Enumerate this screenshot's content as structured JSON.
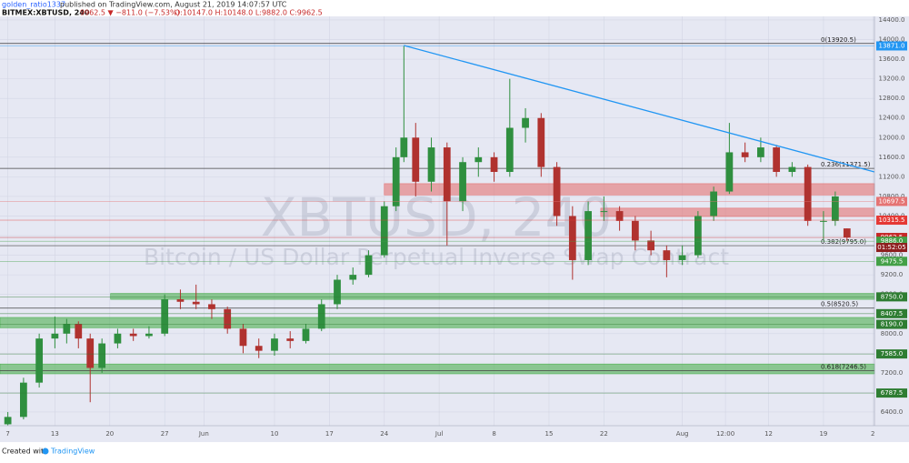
{
  "chart_data": {
    "type": "candlestick",
    "publisher": "golden_ratio1337",
    "published": "published on TradingView.com, August 21, 2019 14:07:57 UTC",
    "symbol": "BITMEX:XBTUSD, 240",
    "change": "9962.5 ▼ −811.0 (−7.53%)",
    "ohlc_text": "O:10147.0 H:10148.0 L:9882.0 C:9962.5",
    "watermark": "XBTUSD, 240",
    "watermark_subtitle": "Bitcoin / US Dollar Perpetual Inverse Swap Contract",
    "footer": "Created with",
    "footer_brand": "TradingView",
    "up_color": "#2f8f3f",
    "down_color": "#b0322f",
    "xlim": [
      6,
      117.5
    ],
    "ylim": [
      6121,
      14474
    ],
    "xticks": [
      {
        "value": 7,
        "label": "7"
      },
      {
        "value": 13,
        "label": "13"
      },
      {
        "value": 20,
        "label": "20"
      },
      {
        "value": 27,
        "label": "27"
      },
      {
        "value": 32,
        "label": "Jun"
      },
      {
        "value": 41,
        "label": "10"
      },
      {
        "value": 48,
        "label": "17"
      },
      {
        "value": 55,
        "label": "24"
      },
      {
        "value": 62,
        "label": "Jul"
      },
      {
        "value": 69,
        "label": "8"
      },
      {
        "value": 76,
        "label": "15"
      },
      {
        "value": 83,
        "label": "22"
      },
      {
        "value": 93,
        "label": "Aug"
      },
      {
        "value": 98.5,
        "label": "12:00"
      },
      {
        "value": 104,
        "label": "12"
      },
      {
        "value": 111,
        "label": "19"
      },
      {
        "value": 117.3,
        "label": "2"
      }
    ],
    "yticks": [
      {
        "value": 6400,
        "label": "6400.0"
      },
      {
        "value": 6800,
        "label": "6800.0"
      },
      {
        "value": 7200,
        "label": "7200.0"
      },
      {
        "value": 7600,
        "label": "7600.0"
      },
      {
        "value": 8000,
        "label": "8000.0"
      },
      {
        "value": 8400,
        "label": "8400.0"
      },
      {
        "value": 8800,
        "label": "8800.0"
      },
      {
        "value": 9200,
        "label": "9200.0"
      },
      {
        "value": 9600,
        "label": "9600.0"
      },
      {
        "value": 10000,
        "label": "10000.0"
      },
      {
        "value": 10400,
        "label": "10400.0"
      },
      {
        "value": 10800,
        "label": "10800.0"
      },
      {
        "value": 11200,
        "label": "11200.0"
      },
      {
        "value": 11600,
        "label": "11600.0"
      },
      {
        "value": 12000,
        "label": "12000.0"
      },
      {
        "value": 12400,
        "label": "12400.0"
      },
      {
        "value": 12800,
        "label": "12800.0"
      },
      {
        "value": 13200,
        "label": "13200.0"
      },
      {
        "value": 13600,
        "label": "13600.0"
      },
      {
        "value": 14000,
        "label": "14000.0"
      },
      {
        "value": 14400,
        "label": "14400.0"
      }
    ],
    "grid": true,
    "x": [
      7,
      9,
      11,
      13,
      14.5,
      16,
      17.5,
      19,
      21,
      23,
      25,
      27,
      29,
      31,
      33,
      35,
      37,
      39,
      41,
      43,
      45,
      47,
      49,
      51,
      53,
      55,
      56.5,
      57.5,
      59,
      61,
      63,
      65,
      67,
      69,
      71,
      73,
      75,
      77,
      79,
      81,
      83,
      85,
      87,
      89,
      91,
      93,
      95,
      97,
      99,
      101,
      103,
      105,
      107,
      109,
      111,
      112.5,
      114
    ],
    "open": [
      6150,
      6300,
      7000,
      7900,
      8000,
      8200,
      7900,
      7300,
      7800,
      8000,
      7950,
      8000,
      8700,
      8650,
      8600,
      8500,
      8100,
      7750,
      7650,
      7900,
      7850,
      8100,
      8600,
      9100,
      9200,
      9600,
      10600,
      11600,
      12000,
      11100,
      11800,
      10700,
      11500,
      11600,
      11300,
      12200,
      12400,
      11400,
      10400,
      9500,
      10500,
      10500,
      10300,
      9900,
      9700,
      9500,
      9600,
      10400,
      10900,
      11700,
      11600,
      11800,
      11300,
      11400,
      10300,
      10300,
      10147
    ],
    "high": [
      6400,
      7100,
      8000,
      8350,
      8300,
      8250,
      8000,
      7900,
      8100,
      8100,
      8150,
      8800,
      8900,
      9000,
      8700,
      8550,
      8200,
      7900,
      8000,
      8050,
      8200,
      8700,
      9200,
      9350,
      9700,
      10700,
      11800,
      13870,
      12300,
      12000,
      11900,
      11600,
      11800,
      11700,
      13200,
      12600,
      12500,
      11500,
      10600,
      10700,
      10800,
      10600,
      10400,
      10100,
      9800,
      9800,
      10500,
      11000,
      12300,
      11900,
      12000,
      11850,
      11500,
      11450,
      10500,
      10900,
      10148
    ],
    "low": [
      6130,
      6250,
      6900,
      7700,
      7800,
      7700,
      6600,
      7200,
      7700,
      7850,
      7900,
      7950,
      8500,
      8500,
      8300,
      8000,
      7600,
      7500,
      7550,
      7700,
      7800,
      8050,
      8500,
      9000,
      9150,
      9550,
      10500,
      11500,
      10800,
      10900,
      9800,
      10500,
      11200,
      11100,
      11200,
      11900,
      11200,
      10200,
      9100,
      9400,
      10300,
      10100,
      9700,
      9600,
      9150,
      9400,
      9550,
      10300,
      10850,
      11500,
      11500,
      11200,
      11200,
      10200,
      9900,
      10200,
      9882
    ],
    "close": [
      6300,
      7000,
      7900,
      8000,
      8200,
      7900,
      7300,
      7800,
      8000,
      7950,
      8000,
      8700,
      8650,
      8600,
      8500,
      8100,
      7750,
      7650,
      7900,
      7850,
      8100,
      8600,
      9100,
      9200,
      9600,
      10600,
      11600,
      12000,
      11100,
      11800,
      10700,
      11500,
      11600,
      11300,
      12200,
      12400,
      11400,
      10400,
      9500,
      10500,
      10500,
      10300,
      9900,
      9700,
      9500,
      9600,
      10400,
      10900,
      11700,
      11600,
      11800,
      11300,
      11400,
      10300,
      10300,
      10800,
      9962.5
    ],
    "trendline": {
      "color": "#2196f3",
      "x": [
        57.5,
        117.5
      ],
      "y": [
        13880,
        11300
      ]
    },
    "zones": [
      {
        "color": "#e57373",
        "x": 55,
        "low": 10830,
        "high": 11060
      },
      {
        "color": "#e57373",
        "x": 82.6,
        "low": 10390,
        "high": 10560
      },
      {
        "color": "#4caf50",
        "x": 20.1,
        "low": 8700,
        "high": 8820
      },
      {
        "color": "#4caf50",
        "x": 6,
        "low": 8120,
        "high": 8330
      },
      {
        "color": "#4caf50",
        "x": 6,
        "low": 7180,
        "high": 7380
      }
    ],
    "fib_levels": [
      {
        "value": 13920.5,
        "label": "0(13920.5)"
      },
      {
        "value": 11371.5,
        "label": "0.236(11371.5)"
      },
      {
        "value": 9795.0,
        "label": "0.382(9795.0)"
      },
      {
        "value": 8520.5,
        "label": "0.5(8520.5)"
      },
      {
        "value": 7246.5,
        "label": "0.618(7246.5)"
      }
    ],
    "price_labels": [
      {
        "value": 13871.0,
        "label": "13871.0",
        "color": "#2196f3"
      },
      {
        "value": 10697.5,
        "label": "10697.5",
        "color": "#e57373"
      },
      {
        "value": 10315.5,
        "label": "10315.5",
        "color": "#e53935"
      },
      {
        "value": 9962.5,
        "label": "9962.5",
        "color": "#c62828"
      },
      {
        "value": 9886.0,
        "label": "9886.0",
        "color": "#43a047"
      },
      {
        "value": 9475.5,
        "label": "9475.5",
        "color": "#43a047"
      },
      {
        "value": 8750.0,
        "label": "8750.0",
        "color": "#2e7d32"
      },
      {
        "value": 8407.5,
        "label": "8407.5",
        "color": "#2e7d32"
      },
      {
        "value": 8190.0,
        "label": "8190.0",
        "color": "#2e7d32"
      },
      {
        "value": 7585.0,
        "label": "7585.0",
        "color": "#2e7d32"
      },
      {
        "value": 6787.5,
        "label": "6787.5",
        "color": "#2e7d32"
      }
    ],
    "countdown": "01:52:05"
  }
}
